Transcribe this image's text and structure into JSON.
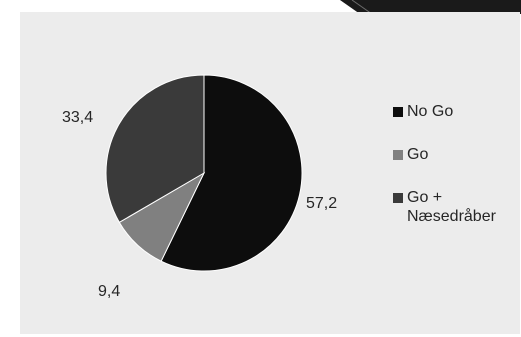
{
  "chart_data": {
    "type": "pie",
    "title": "",
    "slices": [
      {
        "label": "No Go",
        "value": 57.2,
        "display": "57,2",
        "color": "#0d0d0d"
      },
      {
        "label": "Go",
        "value": 9.4,
        "display": "9,4",
        "color": "#808080"
      },
      {
        "label": "Go + Næsedråber",
        "value": 33.4,
        "display": "33,4",
        "color": "#3a3a3a"
      }
    ],
    "legend_position": "right"
  }
}
